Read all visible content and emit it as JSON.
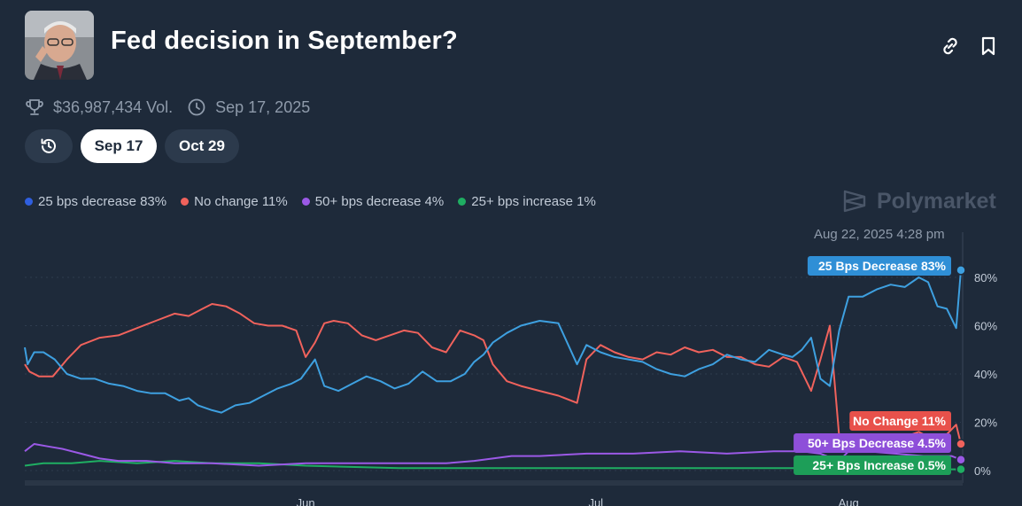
{
  "header": {
    "title": "Fed decision in September?",
    "avatar_icon": "person-photo",
    "link_icon": "link-icon",
    "bookmark_icon": "bookmark-icon"
  },
  "meta": {
    "volume": "$36,987,434 Vol.",
    "end_date": "Sep 17, 2025"
  },
  "tabs": {
    "history_icon": "history-icon",
    "items": [
      {
        "label": "Sep 17",
        "active": true
      },
      {
        "label": "Oct 29",
        "active": false
      }
    ]
  },
  "legend": [
    {
      "label": "25 bps decrease 83%",
      "color": "#2f5fe0"
    },
    {
      "label": "No change 11%",
      "color": "#f0625c"
    },
    {
      "label": "50+ bps decrease 4%",
      "color": "#9b59e6"
    },
    {
      "label": "25+ bps increase 1%",
      "color": "#1fae62"
    }
  ],
  "brand": "Polymarket",
  "timestamp": "Aug 22, 2025 4:28 pm",
  "chart_data": {
    "type": "line",
    "ylim": [
      0,
      90
    ],
    "yticks": [
      "0%",
      "20%",
      "40%",
      "60%",
      "80%"
    ],
    "ytick_values": [
      0,
      20,
      40,
      60,
      80
    ],
    "xticks": [
      "Jun",
      "Jul",
      "Aug"
    ],
    "xtick_values": [
      0.3,
      0.61,
      0.88
    ],
    "xlim": [
      0,
      1
    ],
    "grid": true,
    "series": [
      {
        "name": "25 Bps Decrease",
        "color": "#3ea0e0",
        "tag": "25 Bps Decrease 83%",
        "x": [
          0.0,
          0.003,
          0.01,
          0.02,
          0.032,
          0.045,
          0.06,
          0.075,
          0.09,
          0.105,
          0.12,
          0.135,
          0.15,
          0.165,
          0.175,
          0.185,
          0.2,
          0.21,
          0.225,
          0.24,
          0.255,
          0.27,
          0.285,
          0.295,
          0.31,
          0.32,
          0.335,
          0.35,
          0.365,
          0.38,
          0.395,
          0.41,
          0.425,
          0.44,
          0.455,
          0.47,
          0.48,
          0.49,
          0.5,
          0.515,
          0.53,
          0.55,
          0.57,
          0.59,
          0.6,
          0.615,
          0.63,
          0.645,
          0.66,
          0.675,
          0.69,
          0.705,
          0.72,
          0.735,
          0.75,
          0.765,
          0.78,
          0.795,
          0.81,
          0.82,
          0.83,
          0.84,
          0.85,
          0.86,
          0.87,
          0.88,
          0.895,
          0.91,
          0.925,
          0.94,
          0.955,
          0.965,
          0.975,
          0.985,
          0.995,
          1.0
        ],
        "values": [
          51,
          44,
          49,
          49,
          46,
          40,
          38,
          38,
          36,
          35,
          33,
          32,
          32,
          29,
          30,
          27,
          25,
          24,
          27,
          28,
          31,
          34,
          36,
          38,
          46,
          35,
          33,
          36,
          39,
          37,
          34,
          36,
          41,
          37,
          37,
          40,
          45,
          48,
          53,
          57,
          60,
          62,
          61,
          44,
          52,
          49,
          47,
          46,
          45,
          42,
          40,
          39,
          42,
          44,
          48,
          46,
          45,
          50,
          48,
          47,
          50,
          55,
          38,
          35,
          58,
          72,
          72,
          75,
          77,
          76,
          80,
          78,
          68,
          67,
          59,
          83
        ]
      },
      {
        "name": "No Change",
        "color": "#f0625c",
        "tag": "No Change 11%",
        "x": [
          0.0,
          0.005,
          0.015,
          0.03,
          0.045,
          0.06,
          0.08,
          0.1,
          0.12,
          0.14,
          0.16,
          0.175,
          0.19,
          0.2,
          0.215,
          0.23,
          0.245,
          0.26,
          0.275,
          0.29,
          0.3,
          0.31,
          0.32,
          0.33,
          0.345,
          0.36,
          0.375,
          0.39,
          0.405,
          0.42,
          0.435,
          0.45,
          0.465,
          0.48,
          0.49,
          0.5,
          0.515,
          0.53,
          0.55,
          0.57,
          0.59,
          0.6,
          0.615,
          0.63,
          0.645,
          0.66,
          0.675,
          0.69,
          0.705,
          0.72,
          0.735,
          0.75,
          0.765,
          0.78,
          0.795,
          0.81,
          0.825,
          0.84,
          0.85,
          0.86,
          0.87,
          0.88,
          0.895,
          0.91,
          0.925,
          0.94,
          0.955,
          0.97,
          0.985,
          0.995,
          1.0
        ],
        "values": [
          44,
          41,
          39,
          39,
          46,
          52,
          55,
          56,
          59,
          62,
          65,
          64,
          67,
          69,
          68,
          65,
          61,
          60,
          60,
          58,
          47,
          53,
          61,
          62,
          61,
          56,
          54,
          56,
          58,
          57,
          51,
          49,
          58,
          56,
          54,
          44,
          37,
          35,
          33,
          31,
          28,
          46,
          52,
          49,
          47,
          46,
          49,
          48,
          51,
          49,
          50,
          47,
          47,
          44,
          43,
          47,
          45,
          33,
          46,
          60,
          14,
          12,
          14,
          12,
          15,
          14,
          16,
          13,
          15,
          19,
          11
        ]
      },
      {
        "name": "50+ Bps Decrease",
        "color": "#9b59e6",
        "tag": "50+ Bps Decrease 4.5%",
        "x": [
          0.0,
          0.01,
          0.025,
          0.04,
          0.06,
          0.08,
          0.1,
          0.13,
          0.16,
          0.2,
          0.25,
          0.3,
          0.35,
          0.4,
          0.45,
          0.48,
          0.5,
          0.52,
          0.55,
          0.6,
          0.65,
          0.7,
          0.75,
          0.8,
          0.83,
          0.85,
          0.87,
          0.88,
          0.9,
          0.93,
          0.96,
          0.99,
          1.0
        ],
        "values": [
          8,
          11,
          10,
          9,
          7,
          5,
          4,
          4,
          3,
          3,
          2,
          3,
          3,
          3,
          3,
          4,
          5,
          6,
          6,
          7,
          7,
          8,
          7,
          8,
          8,
          7,
          4,
          8,
          8,
          7,
          6,
          6,
          4.5
        ]
      },
      {
        "name": "25+ Bps Increase",
        "color": "#1fae62",
        "tag": "25+ Bps Increase 0.5%",
        "x": [
          0.0,
          0.02,
          0.05,
          0.08,
          0.12,
          0.16,
          0.2,
          0.25,
          0.3,
          0.4,
          0.5,
          0.6,
          0.7,
          0.8,
          0.85,
          0.88,
          0.95,
          1.0
        ],
        "values": [
          2,
          3,
          3,
          4,
          3,
          4,
          3,
          3,
          2,
          1,
          1,
          1,
          1,
          1,
          1,
          0.5,
          0.5,
          0.5
        ]
      }
    ]
  }
}
